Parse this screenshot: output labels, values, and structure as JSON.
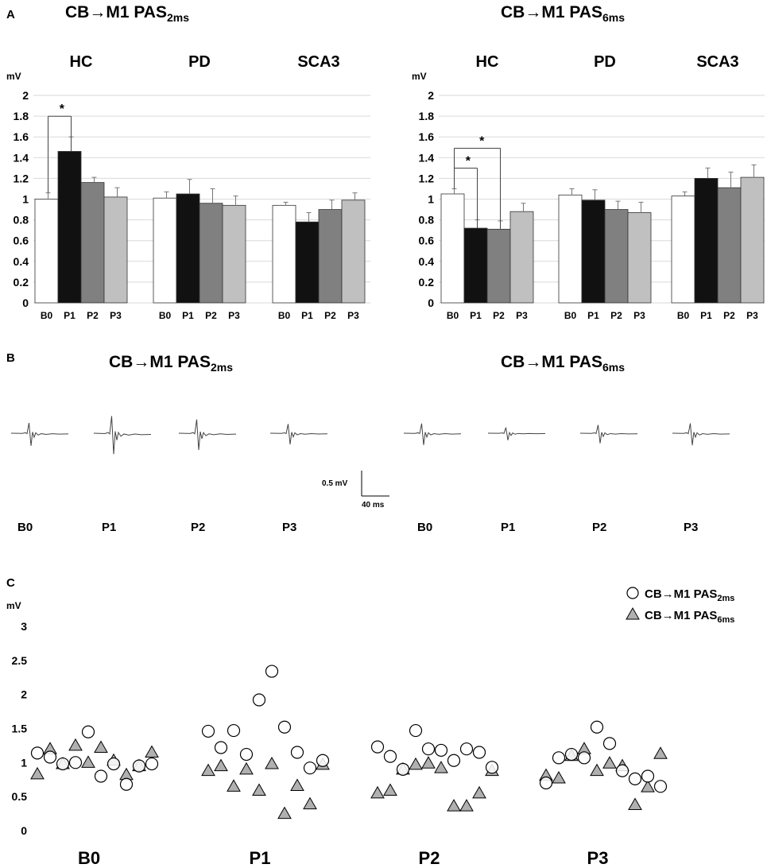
{
  "colors": {
    "B0": "#ffffff",
    "P1": "#111111",
    "P2": "#808080",
    "P3": "#c0c0c0",
    "grid": "#d9d9d9",
    "axis": "#bfbfbf",
    "triangle": "#b0b0b0"
  },
  "panel_labels": {
    "a": "A",
    "b": "B",
    "c": "C"
  },
  "panelA": {
    "unit": "mV",
    "conditions": [
      {
        "prefix": "CB",
        "arrow": "→",
        "stem": "M1 PAS",
        "sub": "2ms"
      },
      {
        "prefix": "CB",
        "arrow": "→",
        "stem": "M1 PAS",
        "sub": "6ms"
      }
    ]
  },
  "panelB": {
    "titles": [
      {
        "prefix": "CB",
        "arrow": "→",
        "stem": "M1 PAS",
        "sub": "2ms"
      },
      {
        "prefix": "CB",
        "arrow": "→",
        "stem": "M1 PAS",
        "sub": "6ms"
      }
    ],
    "scale_y": "0.5 mV",
    "scale_x": "40 ms",
    "labels": [
      "B0",
      "P1",
      "P2",
      "P3",
      "B0",
      "P1",
      "P2",
      "P3"
    ],
    "trace_amplitudes_mV": [
      0.45,
      0.75,
      0.6,
      0.4,
      0.42,
      0.25,
      0.36,
      0.43
    ]
  },
  "chart_data": [
    {
      "type": "bar",
      "panel": "A",
      "condition": "CB→M1 PAS2ms",
      "ylabel": "mV",
      "ylim": [
        0,
        2
      ],
      "yticks": [
        "0",
        "0.2",
        "0.4",
        "0.6",
        "0.8",
        "1",
        "1.2",
        "1.4",
        "1.6",
        "1.8",
        "2"
      ],
      "categories": [
        "B0",
        "P1",
        "P2",
        "P3"
      ],
      "groups": [
        {
          "name": "HC",
          "values": [
            1.0,
            1.46,
            1.16,
            1.02
          ],
          "errors": [
            0.06,
            0.14,
            0.05,
            0.09
          ]
        },
        {
          "name": "PD",
          "values": [
            1.01,
            1.05,
            0.96,
            0.94
          ],
          "errors": [
            0.06,
            0.14,
            0.14,
            0.09
          ]
        },
        {
          "name": "SCA3",
          "values": [
            0.94,
            0.78,
            0.9,
            0.99
          ],
          "errors": [
            0.03,
            0.09,
            0.09,
            0.07
          ]
        }
      ],
      "significance": [
        {
          "group": "HC",
          "from": "B0",
          "to": "P1",
          "label": "*"
        }
      ]
    },
    {
      "type": "bar",
      "panel": "A",
      "condition": "CB→M1 PAS6ms",
      "ylabel": "mV",
      "ylim": [
        0,
        2
      ],
      "yticks": [
        "0",
        "0.2",
        "0.4",
        "0.6",
        "0.8",
        "1",
        "1.2",
        "1.4",
        "1.6",
        "1.8",
        "2"
      ],
      "categories": [
        "B0",
        "P1",
        "P2",
        "P3"
      ],
      "groups": [
        {
          "name": "HC",
          "values": [
            1.05,
            0.72,
            0.71,
            0.88
          ],
          "errors": [
            0.05,
            0.08,
            0.08,
            0.08
          ]
        },
        {
          "name": "PD",
          "values": [
            1.04,
            0.99,
            0.9,
            0.87
          ],
          "errors": [
            0.06,
            0.1,
            0.08,
            0.1
          ]
        },
        {
          "name": "SCA3",
          "values": [
            1.03,
            1.2,
            1.11,
            1.21
          ],
          "errors": [
            0.04,
            0.1,
            0.15,
            0.12
          ]
        }
      ],
      "significance": [
        {
          "group": "HC",
          "from": "B0",
          "to": "P1",
          "label": "*"
        },
        {
          "group": "HC",
          "from": "B0",
          "to": "P2",
          "label": "*"
        }
      ]
    },
    {
      "type": "scatter",
      "panel": "C",
      "ylabel": "mV",
      "ylim": [
        0,
        3
      ],
      "yticks": [
        "0",
        "0.5",
        "1",
        "1.5",
        "2",
        "2.5",
        "3"
      ],
      "categories": [
        "B0",
        "P1",
        "P2",
        "P3"
      ],
      "legend_position": "top-right",
      "series": [
        {
          "name": "CB→M1 PAS2ms",
          "label_prefix": "CB",
          "label_arrow": "→",
          "label_stem": "M1 PAS",
          "label_sub": "2ms",
          "marker": "circle",
          "values": [
            [
              1.14,
              1.08,
              0.98,
              1.0,
              1.45,
              0.8,
              0.98,
              0.68,
              0.95,
              0.98
            ],
            [
              1.46,
              1.22,
              1.47,
              1.12,
              1.92,
              2.34,
              1.52,
              1.15,
              0.92,
              1.03
            ],
            [
              1.23,
              1.09,
              0.9,
              1.47,
              1.2,
              1.18,
              1.03,
              1.2,
              1.15,
              0.93
            ],
            [
              0.7,
              1.07,
              1.12,
              1.07,
              1.52,
              1.28,
              0.88,
              0.76,
              0.8,
              0.65
            ]
          ]
        },
        {
          "name": "CB→M1 PAS6ms",
          "label_prefix": "CB",
          "label_arrow": "→",
          "label_stem": "M1 PAS",
          "label_sub": "6ms",
          "marker": "triangle",
          "values": [
            [
              0.83,
              1.2,
              0.98,
              1.25,
              1.0,
              1.22,
              1.03,
              0.82,
              0.95,
              1.15
            ],
            [
              0.88,
              0.95,
              0.65,
              0.9,
              0.59,
              0.98,
              0.25,
              0.66,
              0.39,
              0.97
            ],
            [
              0.55,
              0.59,
              0.9,
              0.97,
              0.99,
              0.92,
              0.36,
              0.36,
              0.55,
              0.88
            ],
            [
              0.81,
              0.77,
              1.1,
              1.2,
              0.88,
              0.99,
              0.95,
              0.38,
              0.64,
              1.13
            ]
          ]
        }
      ]
    }
  ]
}
